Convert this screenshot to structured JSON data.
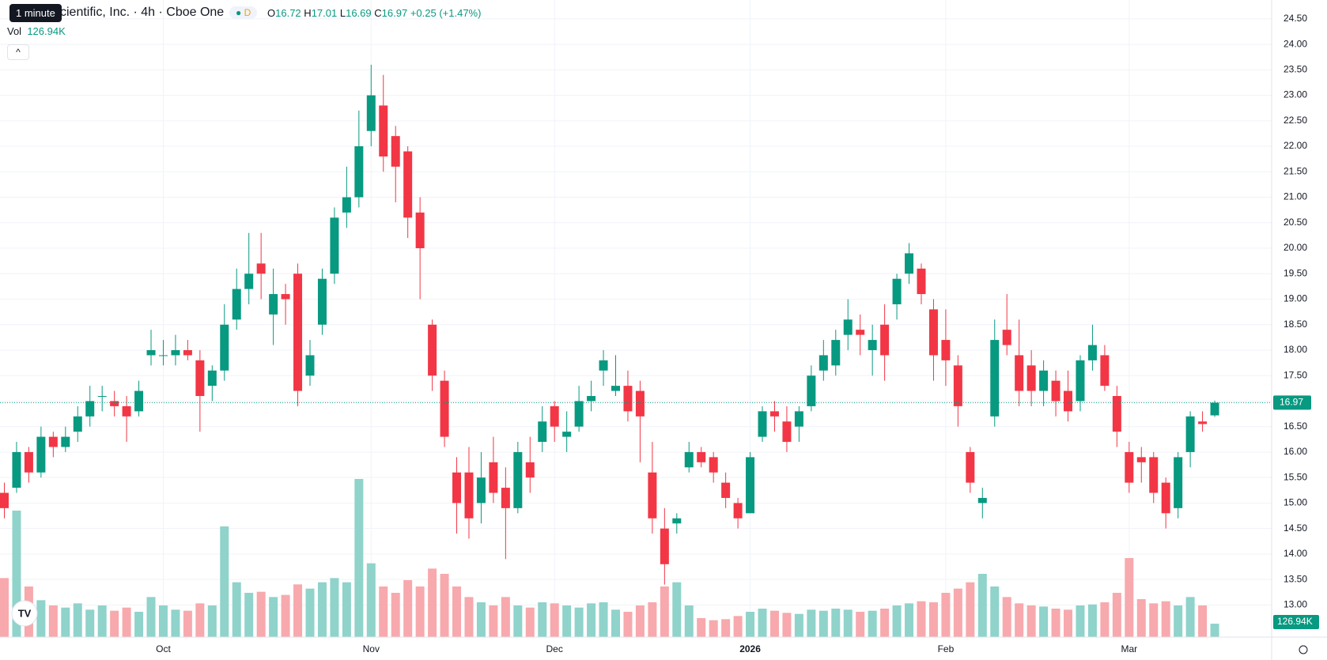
{
  "header": {
    "tooltip": "1 minute",
    "symbol": "cientific, Inc. · 4h · Cboe One",
    "badge": "D",
    "o_label": "O",
    "h_label": "H",
    "l_label": "L",
    "c_label": "C",
    "change": "+0.25 (+1.47%)",
    "vol_label": "Vol"
  },
  "chart_data": {
    "type": "candlestick",
    "up_color": "#089981",
    "down_color": "#f23645",
    "volume_up_color": "#8fd3cb",
    "volume_down_color": "#f7a9ad",
    "categories": [
      null,
      null,
      null,
      null,
      null,
      null,
      null,
      null,
      null,
      null,
      null,
      null,
      null,
      "Oct",
      null,
      null,
      null,
      null,
      null,
      null,
      null,
      null,
      null,
      null,
      null,
      null,
      null,
      null,
      null,
      null,
      "Nov",
      null,
      null,
      null,
      null,
      null,
      null,
      null,
      null,
      null,
      null,
      null,
      null,
      null,
      null,
      "Dec",
      null,
      null,
      null,
      null,
      null,
      null,
      null,
      null,
      null,
      null,
      null,
      null,
      null,
      null,
      null,
      "2026",
      null,
      null,
      null,
      null,
      null,
      null,
      null,
      null,
      null,
      null,
      null,
      null,
      null,
      null,
      null,
      "Feb",
      null,
      null,
      null,
      null,
      null,
      null,
      null,
      null,
      null,
      null,
      null,
      null,
      null,
      null,
      "Mar",
      null,
      null,
      null,
      null,
      null,
      null,
      null
    ],
    "open": [
      15.2,
      15.3,
      16.0,
      15.6,
      16.3,
      16.1,
      16.4,
      16.7,
      17.1,
      17.0,
      16.9,
      16.8,
      17.9,
      17.9,
      17.9,
      18.0,
      17.8,
      17.3,
      17.6,
      18.6,
      19.2,
      19.7,
      18.7,
      19.1,
      19.5,
      17.5,
      18.5,
      19.5,
      20.7,
      21.0,
      22.3,
      22.8,
      22.2,
      21.9,
      20.7,
      18.5,
      17.4,
      15.6,
      15.6,
      15.0,
      15.8,
      15.3,
      14.9,
      15.8,
      16.2,
      16.9,
      16.3,
      16.5,
      17.0,
      17.6,
      17.2,
      17.3,
      17.2,
      15.6,
      14.5,
      14.6,
      15.7,
      16.0,
      15.9,
      15.4,
      15.0,
      14.8,
      16.3,
      16.8,
      16.6,
      16.5,
      16.9,
      17.6,
      17.7,
      18.3,
      18.4,
      18.0,
      18.5,
      18.9,
      19.5,
      19.6,
      18.8,
      18.2,
      17.7,
      16.0,
      15.0,
      16.7,
      18.4,
      17.9,
      17.7,
      17.2,
      17.4,
      17.2,
      17.0,
      17.8,
      17.9,
      17.1,
      16.0,
      15.9,
      15.9,
      15.4,
      14.9,
      16.0,
      16.6,
      16.72
    ],
    "high": [
      15.4,
      16.2,
      16.1,
      16.5,
      16.4,
      16.5,
      16.9,
      17.3,
      17.3,
      17.2,
      17.1,
      17.4,
      18.4,
      18.2,
      18.3,
      18.2,
      18.0,
      17.7,
      18.9,
      19.6,
      20.3,
      20.3,
      19.6,
      19.3,
      19.7,
      18.2,
      19.6,
      20.8,
      21.6,
      22.7,
      23.6,
      23.4,
      22.4,
      22.0,
      21.0,
      18.6,
      17.6,
      15.9,
      16.1,
      16.0,
      16.3,
      15.7,
      16.2,
      16.3,
      16.9,
      17.0,
      16.8,
      17.3,
      17.4,
      18.0,
      17.9,
      17.6,
      17.4,
      16.2,
      14.9,
      14.8,
      16.2,
      16.1,
      16.0,
      15.6,
      15.1,
      16.0,
      16.9,
      17.0,
      16.9,
      16.9,
      17.7,
      18.2,
      18.4,
      19.0,
      18.7,
      18.5,
      18.9,
      19.5,
      20.1,
      19.7,
      19.0,
      18.8,
      17.9,
      16.1,
      15.3,
      18.6,
      19.1,
      18.6,
      18.0,
      17.8,
      17.6,
      17.6,
      17.9,
      18.5,
      18.1,
      17.3,
      16.2,
      16.1,
      16.0,
      15.5,
      16.0,
      16.8,
      16.8,
      17.01
    ],
    "low": [
      14.7,
      15.2,
      15.4,
      15.5,
      15.9,
      16.0,
      16.2,
      16.5,
      16.8,
      16.7,
      16.2,
      16.7,
      17.7,
      17.7,
      17.7,
      17.8,
      16.4,
      17.0,
      17.4,
      18.4,
      18.9,
      19.0,
      18.1,
      18.5,
      16.9,
      17.3,
      18.3,
      19.3,
      20.4,
      20.8,
      22.0,
      21.5,
      20.9,
      20.2,
      19.0,
      17.2,
      16.1,
      14.4,
      14.3,
      14.6,
      15.0,
      13.9,
      14.8,
      15.2,
      16.0,
      16.2,
      16.0,
      16.4,
      16.8,
      17.3,
      17.1,
      16.6,
      15.8,
      14.4,
      13.4,
      14.4,
      15.6,
      15.7,
      15.4,
      14.9,
      14.5,
      14.8,
      16.2,
      16.4,
      16.0,
      16.2,
      16.8,
      17.4,
      17.5,
      18.0,
      17.9,
      17.5,
      17.4,
      18.6,
      19.3,
      18.9,
      17.4,
      17.3,
      16.5,
      15.2,
      14.7,
      16.5,
      17.9,
      16.9,
      16.9,
      16.9,
      16.7,
      16.6,
      16.8,
      17.6,
      17.2,
      16.1,
      15.2,
      15.4,
      15.0,
      14.5,
      14.7,
      15.7,
      16.4,
      16.69
    ],
    "close": [
      14.9,
      16.0,
      15.6,
      16.3,
      16.1,
      16.3,
      16.7,
      17.0,
      17.1,
      16.9,
      16.7,
      17.2,
      18.0,
      17.9,
      18.0,
      17.9,
      17.1,
      17.6,
      18.5,
      19.2,
      19.5,
      19.5,
      19.1,
      19.0,
      17.2,
      17.9,
      19.4,
      20.6,
      21.0,
      22.0,
      23.0,
      21.8,
      21.6,
      20.6,
      20.0,
      17.5,
      16.3,
      15.0,
      14.7,
      15.5,
      15.2,
      14.9,
      16.0,
      15.5,
      16.6,
      16.5,
      16.4,
      17.0,
      17.1,
      17.8,
      17.3,
      16.8,
      16.7,
      14.7,
      13.8,
      14.7,
      16.0,
      15.8,
      15.6,
      15.1,
      14.7,
      15.9,
      16.8,
      16.7,
      16.2,
      16.8,
      17.5,
      17.9,
      18.2,
      18.6,
      18.3,
      18.2,
      17.9,
      19.4,
      19.9,
      19.1,
      17.9,
      17.8,
      16.9,
      15.4,
      15.1,
      18.2,
      18.1,
      17.2,
      17.2,
      17.6,
      17.0,
      16.8,
      17.8,
      18.1,
      17.3,
      16.4,
      15.4,
      15.8,
      15.2,
      14.8,
      15.9,
      16.7,
      16.55,
      16.97
    ],
    "volume": {
      "values": [
        560000,
        1200000,
        480000,
        350000,
        300000,
        280000,
        320000,
        260000,
        300000,
        250000,
        280000,
        240000,
        380000,
        300000,
        260000,
        250000,
        320000,
        300000,
        1050000,
        520000,
        420000,
        430000,
        380000,
        400000,
        500000,
        460000,
        520000,
        560000,
        520000,
        1500000,
        700000,
        480000,
        420000,
        540000,
        480000,
        650000,
        600000,
        480000,
        380000,
        330000,
        300000,
        380000,
        300000,
        280000,
        330000,
        320000,
        300000,
        280000,
        320000,
        330000,
        260000,
        240000,
        300000,
        330000,
        480000,
        520000,
        300000,
        180000,
        160000,
        170000,
        200000,
        240000,
        270000,
        250000,
        230000,
        220000,
        260000,
        250000,
        270000,
        260000,
        240000,
        250000,
        270000,
        300000,
        320000,
        340000,
        330000,
        420000,
        460000,
        520000,
        600000,
        480000,
        380000,
        320000,
        300000,
        290000,
        270000,
        260000,
        300000,
        310000,
        330000,
        420000,
        750000,
        360000,
        320000,
        340000,
        300000,
        380000,
        300000,
        126940
      ],
      "last_label": "126.94K"
    },
    "ylim": [
      12.37,
      24.87
    ],
    "yticks": [
      {
        "value": 13,
        "label": "13.00"
      },
      {
        "value": 13.5,
        "label": "13.50"
      },
      {
        "value": 14,
        "label": "14.00"
      },
      {
        "value": 14.5,
        "label": "14.50"
      },
      {
        "value": 15,
        "label": "15.00"
      },
      {
        "value": 15.5,
        "label": "15.50"
      },
      {
        "value": 16,
        "label": "16.00"
      },
      {
        "value": 16.5,
        "label": "16.50"
      },
      {
        "value": 17,
        "label": "17.00"
      },
      {
        "value": 17.5,
        "label": "17.50"
      },
      {
        "value": 18,
        "label": "18.00"
      },
      {
        "value": 18.5,
        "label": "18.50"
      },
      {
        "value": 19,
        "label": "19.00"
      },
      {
        "value": 19.5,
        "label": "19.50"
      },
      {
        "value": 20,
        "label": "20.00"
      },
      {
        "value": 20.5,
        "label": "20.50"
      },
      {
        "value": 21,
        "label": "21.00"
      },
      {
        "value": 21.5,
        "label": "21.50"
      },
      {
        "value": 22,
        "label": "22.00"
      },
      {
        "value": 22.5,
        "label": "22.50"
      },
      {
        "value": 23,
        "label": "23.00"
      },
      {
        "value": 23.5,
        "label": "23.50"
      },
      {
        "value": 24,
        "label": "24.00"
      },
      {
        "value": 24.5,
        "label": "24.50"
      }
    ],
    "grid": true
  }
}
